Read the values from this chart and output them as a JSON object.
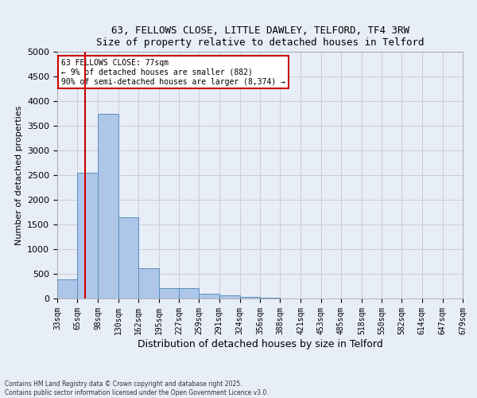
{
  "title_line1": "63, FELLOWS CLOSE, LITTLE DAWLEY, TELFORD, TF4 3RW",
  "title_line2": "Size of property relative to detached houses in Telford",
  "xlabel": "Distribution of detached houses by size in Telford",
  "ylabel": "Number of detached properties",
  "bin_labels": [
    "33sqm",
    "65sqm",
    "98sqm",
    "130sqm",
    "162sqm",
    "195sqm",
    "227sqm",
    "259sqm",
    "291sqm",
    "324sqm",
    "356sqm",
    "388sqm",
    "421sqm",
    "453sqm",
    "485sqm",
    "518sqm",
    "550sqm",
    "582sqm",
    "614sqm",
    "647sqm",
    "679sqm"
  ],
  "bin_edges": [
    33,
    65,
    98,
    130,
    162,
    195,
    227,
    259,
    291,
    324,
    356,
    388,
    421,
    453,
    485,
    518,
    550,
    582,
    614,
    647,
    679
  ],
  "bar_heights": [
    380,
    2550,
    3750,
    1650,
    620,
    215,
    215,
    100,
    60,
    30,
    15,
    8,
    5,
    3,
    2,
    1,
    1,
    1,
    0,
    0
  ],
  "bar_color": "#aec6e8",
  "bar_edge_color": "#5a8fc0",
  "grid_color": "#cccccc",
  "bg_color": "#e8eef8",
  "vline_x": 77,
  "vline_color": "#cc0000",
  "ylim": [
    0,
    5000
  ],
  "yticks": [
    0,
    500,
    1000,
    1500,
    2000,
    2500,
    3000,
    3500,
    4000,
    4500,
    5000
  ],
  "annotation_title": "63 FELLOWS CLOSE: 77sqm",
  "annotation_line1": "← 9% of detached houses are smaller (882)",
  "annotation_line2": "90% of semi-detached houses are larger (8,374) →",
  "annotation_box_color": "#ffffff",
  "annotation_border_color": "#cc0000",
  "footer_line1": "Contains HM Land Registry data © Crown copyright and database right 2025.",
  "footer_line2": "Contains public sector information licensed under the Open Government Licence v3.0."
}
